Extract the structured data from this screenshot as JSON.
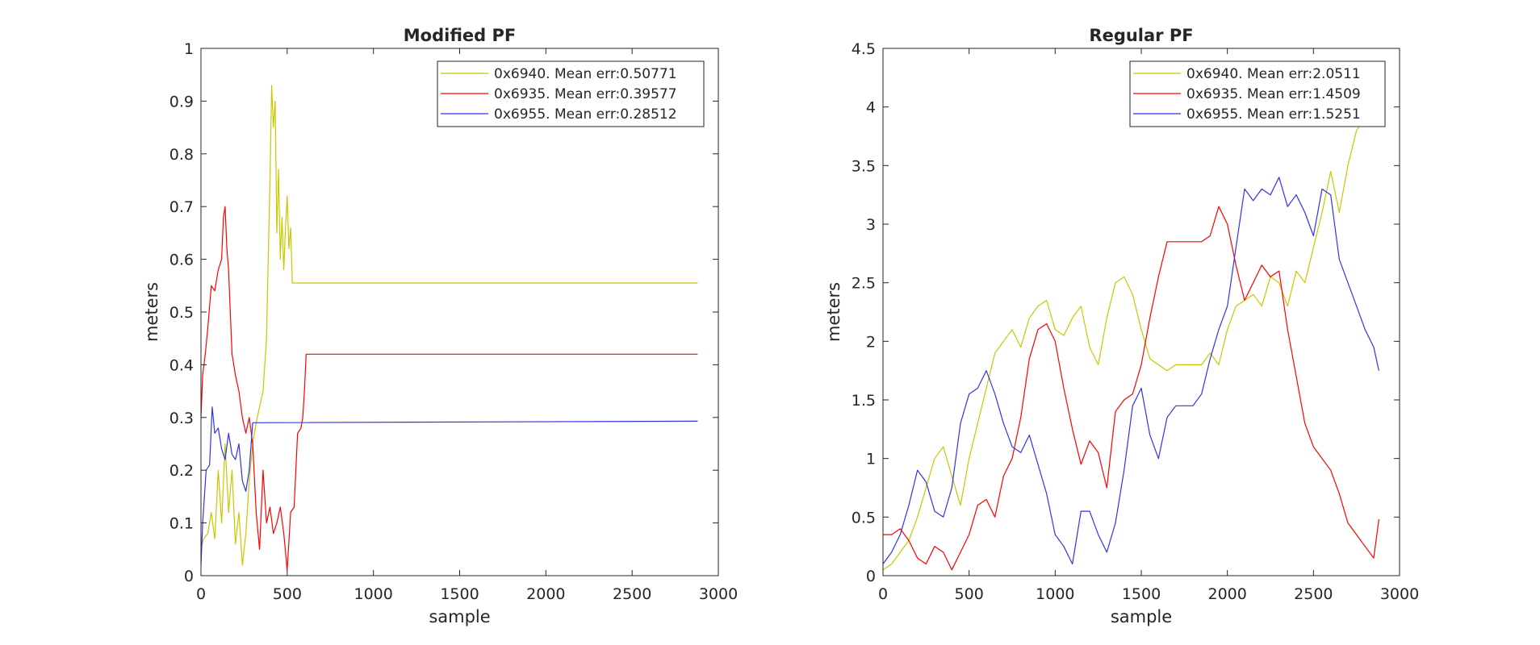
{
  "chart_data": [
    {
      "type": "line",
      "title": "Modified PF",
      "xlabel": "sample",
      "ylabel": "meters",
      "xlim": [
        0,
        3000
      ],
      "ylim": [
        0,
        1
      ],
      "xticks": [
        0,
        500,
        1000,
        1500,
        2000,
        2500,
        3000
      ],
      "yticks": [
        0,
        0.1,
        0.2,
        0.3,
        0.4,
        0.5,
        0.6,
        0.7,
        0.8,
        0.9,
        1
      ],
      "grid": false,
      "legend": "top-right",
      "series": [
        {
          "name": "0x6940. Mean err:0.50771",
          "color": "#c8c800",
          "x": [
            0,
            15,
            40,
            60,
            80,
            100,
            120,
            140,
            160,
            180,
            200,
            220,
            240,
            260,
            280,
            300,
            320,
            340,
            360,
            380,
            390,
            400,
            410,
            420,
            430,
            440,
            450,
            460,
            470,
            480,
            490,
            500,
            510,
            520,
            530,
            540,
            2880
          ],
          "y": [
            0.05,
            0.07,
            0.08,
            0.12,
            0.07,
            0.2,
            0.1,
            0.25,
            0.12,
            0.2,
            0.06,
            0.12,
            0.02,
            0.08,
            0.18,
            0.25,
            0.29,
            0.32,
            0.35,
            0.45,
            0.6,
            0.75,
            0.93,
            0.85,
            0.9,
            0.65,
            0.77,
            0.6,
            0.68,
            0.58,
            0.66,
            0.72,
            0.62,
            0.66,
            0.555,
            0.555,
            0.555
          ]
        },
        {
          "name": "0x6935. Mean err:0.39577",
          "color": "#ff0000",
          "x": [
            0,
            10,
            25,
            40,
            60,
            80,
            100,
            120,
            130,
            140,
            150,
            160,
            170,
            180,
            200,
            220,
            240,
            260,
            280,
            300,
            320,
            340,
            360,
            380,
            400,
            420,
            440,
            460,
            480,
            500,
            520,
            540,
            560,
            580,
            590,
            600,
            610,
            2880
          ],
          "y": [
            0.3,
            0.38,
            0.42,
            0.47,
            0.55,
            0.54,
            0.58,
            0.6,
            0.68,
            0.7,
            0.62,
            0.58,
            0.5,
            0.42,
            0.38,
            0.35,
            0.3,
            0.27,
            0.3,
            0.25,
            0.12,
            0.05,
            0.2,
            0.1,
            0.13,
            0.08,
            0.1,
            0.13,
            0.08,
            0.01,
            0.12,
            0.13,
            0.27,
            0.28,
            0.3,
            0.35,
            0.42,
            0.42
          ]
        },
        {
          "name": "0x6955. Mean err:0.28512",
          "color": "#3333e6",
          "x": [
            0,
            10,
            30,
            50,
            65,
            80,
            100,
            120,
            140,
            160,
            180,
            200,
            220,
            240,
            260,
            280,
            300,
            2880
          ],
          "y": [
            0.02,
            0.1,
            0.2,
            0.21,
            0.32,
            0.27,
            0.28,
            0.24,
            0.22,
            0.27,
            0.23,
            0.22,
            0.25,
            0.18,
            0.16,
            0.2,
            0.29,
            0.293
          ]
        }
      ]
    },
    {
      "type": "line",
      "title": "Regular PF",
      "xlabel": "sample",
      "ylabel": "meters",
      "xlim": [
        0,
        3000
      ],
      "ylim": [
        0,
        4.5
      ],
      "xticks": [
        0,
        500,
        1000,
        1500,
        2000,
        2500,
        3000
      ],
      "yticks": [
        0,
        0.5,
        1,
        1.5,
        2,
        2.5,
        3,
        3.5,
        4,
        4.5
      ],
      "grid": false,
      "legend": "top-right",
      "series": [
        {
          "name": "0x6940. Mean err:2.0511",
          "color": "#c8c800",
          "x": [
            0,
            50,
            100,
            150,
            200,
            250,
            300,
            350,
            400,
            450,
            500,
            550,
            600,
            650,
            700,
            750,
            800,
            850,
            900,
            950,
            1000,
            1050,
            1100,
            1150,
            1200,
            1250,
            1300,
            1350,
            1400,
            1450,
            1500,
            1550,
            1600,
            1650,
            1700,
            1750,
            1800,
            1850,
            1900,
            1950,
            2000,
            2050,
            2100,
            2150,
            2200,
            2250,
            2300,
            2350,
            2400,
            2450,
            2500,
            2550,
            2600,
            2650,
            2700,
            2750,
            2800,
            2850,
            2880
          ],
          "y": [
            0.05,
            0.1,
            0.2,
            0.3,
            0.5,
            0.75,
            1.0,
            1.1,
            0.85,
            0.6,
            1.0,
            1.3,
            1.6,
            1.9,
            2.0,
            2.1,
            1.95,
            2.2,
            2.3,
            2.35,
            2.1,
            2.05,
            2.2,
            2.3,
            1.95,
            1.8,
            2.2,
            2.5,
            2.55,
            2.4,
            2.1,
            1.85,
            1.8,
            1.75,
            1.8,
            1.8,
            1.8,
            1.8,
            1.9,
            1.8,
            2.1,
            2.3,
            2.35,
            2.4,
            2.3,
            2.55,
            2.5,
            2.3,
            2.6,
            2.5,
            2.8,
            3.1,
            3.45,
            3.1,
            3.5,
            3.8,
            3.9,
            4.1,
            4.2
          ]
        },
        {
          "name": "0x6935. Mean err:1.4509",
          "color": "#ff0000",
          "x": [
            0,
            50,
            100,
            150,
            200,
            250,
            300,
            350,
            400,
            450,
            500,
            550,
            600,
            650,
            700,
            750,
            800,
            850,
            900,
            950,
            1000,
            1050,
            1100,
            1150,
            1200,
            1250,
            1300,
            1350,
            1400,
            1450,
            1500,
            1550,
            1600,
            1650,
            1700,
            1750,
            1800,
            1850,
            1900,
            1950,
            2000,
            2050,
            2100,
            2150,
            2200,
            2250,
            2300,
            2350,
            2400,
            2450,
            2500,
            2550,
            2600,
            2650,
            2700,
            2750,
            2800,
            2850,
            2880
          ],
          "y": [
            0.35,
            0.35,
            0.4,
            0.3,
            0.15,
            0.1,
            0.25,
            0.2,
            0.05,
            0.2,
            0.35,
            0.6,
            0.65,
            0.5,
            0.85,
            1.0,
            1.35,
            1.85,
            2.1,
            2.15,
            2.0,
            1.6,
            1.25,
            0.95,
            1.15,
            1.05,
            0.75,
            1.4,
            1.5,
            1.55,
            1.8,
            2.2,
            2.55,
            2.85,
            2.85,
            2.85,
            2.85,
            2.85,
            2.9,
            3.15,
            3.0,
            2.65,
            2.35,
            2.5,
            2.65,
            2.55,
            2.6,
            2.1,
            1.7,
            1.3,
            1.1,
            1.0,
            0.9,
            0.7,
            0.45,
            0.35,
            0.25,
            0.15,
            0.48
          ]
        },
        {
          "name": "0x6955. Mean err:1.5251",
          "color": "#3333e6",
          "x": [
            0,
            50,
            100,
            150,
            200,
            250,
            300,
            350,
            400,
            450,
            500,
            550,
            600,
            650,
            700,
            750,
            800,
            850,
            900,
            950,
            1000,
            1050,
            1100,
            1150,
            1200,
            1250,
            1300,
            1350,
            1400,
            1450,
            1500,
            1550,
            1600,
            1650,
            1700,
            1750,
            1800,
            1850,
            1900,
            1950,
            2000,
            2050,
            2100,
            2150,
            2200,
            2250,
            2300,
            2350,
            2400,
            2450,
            2500,
            2550,
            2600,
            2650,
            2700,
            2750,
            2800,
            2850,
            2880
          ],
          "y": [
            0.1,
            0.2,
            0.35,
            0.6,
            0.9,
            0.8,
            0.55,
            0.5,
            0.75,
            1.3,
            1.55,
            1.6,
            1.75,
            1.55,
            1.3,
            1.1,
            1.05,
            1.2,
            0.95,
            0.7,
            0.35,
            0.25,
            0.1,
            0.55,
            0.55,
            0.35,
            0.2,
            0.45,
            0.9,
            1.45,
            1.6,
            1.2,
            1.0,
            1.35,
            1.45,
            1.45,
            1.45,
            1.55,
            1.85,
            2.1,
            2.3,
            2.8,
            3.3,
            3.2,
            3.3,
            3.25,
            3.4,
            3.15,
            3.25,
            3.1,
            2.9,
            3.3,
            3.25,
            2.7,
            2.5,
            2.3,
            2.1,
            1.95,
            1.75
          ]
        }
      ]
    }
  ]
}
